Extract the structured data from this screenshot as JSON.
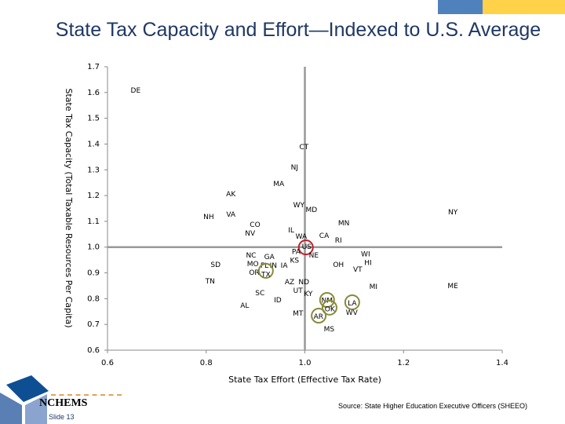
{
  "title": "State Tax Capacity and Effort—Indexed to U.S. Average",
  "source": "Source:  State Higher Education Executive Officers (SHEEO)",
  "logo": "NCHEMS",
  "slide": "Slide 13",
  "colors": {
    "accent_blue": "#4f81bd",
    "accent_yellow": "#ffd24a",
    "us_circle": "#c0202a",
    "highlight_circle": "#8a8a3a",
    "ref_line": "#999999"
  },
  "chart_data": {
    "type": "scatter",
    "xlabel": "State Tax Effort (Effective Tax Rate)",
    "ylabel": "State Tax Capacity (Total Taxable Resources Per Capita)",
    "xlim": [
      0.6,
      1.4
    ],
    "ylim": [
      0.6,
      1.7
    ],
    "xticks": [
      "0.6",
      "0.8",
      "1.0",
      "1.2",
      "1.4"
    ],
    "yticks": [
      "0.6",
      "0.7",
      "0.8",
      "0.9",
      "1.0",
      "1.1",
      "1.2",
      "1.3",
      "1.4",
      "1.5",
      "1.6",
      "1.7"
    ],
    "reference_lines": {
      "x": 1.0,
      "y": 1.0
    },
    "points": [
      {
        "label": "DE",
        "x": 0.657,
        "y": 1.612
      },
      {
        "label": "CT",
        "x": 0.998,
        "y": 1.392
      },
      {
        "label": "NJ",
        "x": 0.979,
        "y": 1.313
      },
      {
        "label": "MA",
        "x": 0.947,
        "y": 1.249
      },
      {
        "label": "AK",
        "x": 0.85,
        "y": 1.209
      },
      {
        "label": "WY",
        "x": 0.991,
        "y": 1.167
      },
      {
        "label": "MD",
        "x": 1.01,
        "y": 1.148
      },
      {
        "label": "NY",
        "x": 1.3,
        "y": 1.139
      },
      {
        "label": "NH",
        "x": 0.805,
        "y": 1.121
      },
      {
        "label": "VA",
        "x": 0.85,
        "y": 1.13
      },
      {
        "label": "MN",
        "x": 1.079,
        "y": 1.097
      },
      {
        "label": "CO",
        "x": 0.899,
        "y": 1.088
      },
      {
        "label": "NV",
        "x": 0.889,
        "y": 1.06
      },
      {
        "label": "IL",
        "x": 0.974,
        "y": 1.069
      },
      {
        "label": "WA",
        "x": 0.991,
        "y": 1.045
      },
      {
        "label": "CA",
        "x": 1.039,
        "y": 1.048
      },
      {
        "label": "RI",
        "x": 1.068,
        "y": 1.03
      },
      {
        "label": "US",
        "x": 1.002,
        "y": 0.999,
        "circle": "us"
      },
      {
        "label": "PA",
        "x": 0.984,
        "y": 0.978
      },
      {
        "label": "NE",
        "x": 1.018,
        "y": 0.978
      },
      {
        "label": "NC",
        "x": 0.891,
        "y": 0.969
      },
      {
        "label": "GA",
        "x": 0.928,
        "y": 0.957
      },
      {
        "label": "KS",
        "x": 0.979,
        "y": 0.96
      },
      {
        "label": "MO",
        "x": 0.896,
        "y": 0.938
      },
      {
        "label": "FL",
        "x": 0.915,
        "y": 0.932
      },
      {
        "label": "IN",
        "x": 0.936,
        "y": 0.929
      },
      {
        "label": "IA",
        "x": 0.958,
        "y": 0.932
      },
      {
        "label": "OR",
        "x": 0.899,
        "y": 0.908
      },
      {
        "label": "TX",
        "x": 0.921,
        "y": 0.908,
        "circle": "highlight"
      },
      {
        "label": "SD",
        "x": 0.819,
        "y": 0.935
      },
      {
        "label": "WI",
        "x": 1.123,
        "y": 0.972
      },
      {
        "label": "HI",
        "x": 1.128,
        "y": 0.947
      },
      {
        "label": "OH",
        "x": 1.068,
        "y": 0.935
      },
      {
        "label": "VT",
        "x": 1.107,
        "y": 0.917
      },
      {
        "label": "TN",
        "x": 0.808,
        "y": 0.871
      },
      {
        "label": "AZ",
        "x": 0.969,
        "y": 0.868
      },
      {
        "label": "ND",
        "x": 0.998,
        "y": 0.868
      },
      {
        "label": "MI",
        "x": 1.139,
        "y": 0.85
      },
      {
        "label": "ME",
        "x": 1.3,
        "y": 0.853
      },
      {
        "label": "UT",
        "x": 0.986,
        "y": 0.835
      },
      {
        "label": "KY",
        "x": 1.007,
        "y": 0.822
      },
      {
        "label": "SC",
        "x": 0.909,
        "y": 0.826
      },
      {
        "label": "ID",
        "x": 0.945,
        "y": 0.798
      },
      {
        "label": "NM",
        "x": 1.045,
        "y": 0.795,
        "circle": "highlight"
      },
      {
        "label": "LA",
        "x": 1.096,
        "y": 0.786,
        "circle": "highlight"
      },
      {
        "label": "OK",
        "x": 1.05,
        "y": 0.765,
        "circle": "highlight"
      },
      {
        "label": "AL",
        "x": 0.878,
        "y": 0.777
      },
      {
        "label": "WV",
        "x": 1.095,
        "y": 0.749
      },
      {
        "label": "MT",
        "x": 0.986,
        "y": 0.746
      },
      {
        "label": "AR",
        "x": 1.028,
        "y": 0.734,
        "circle": "highlight"
      },
      {
        "label": "MS",
        "x": 1.049,
        "y": 0.685
      }
    ]
  }
}
